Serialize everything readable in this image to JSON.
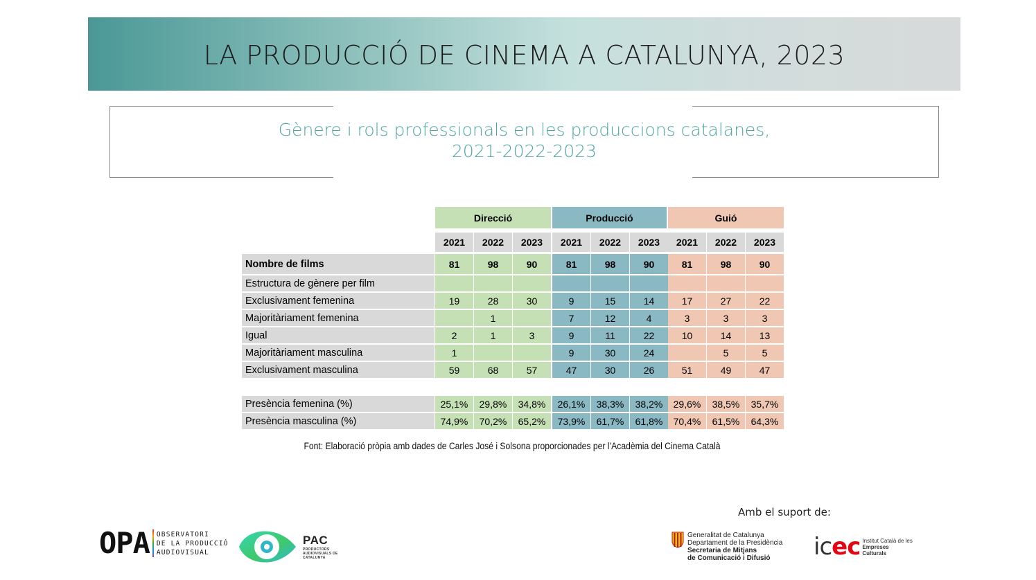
{
  "header": {
    "title": "LA PRODUCCIÓ DE CINEMA A CATALUNYA, 2023"
  },
  "subtitle": {
    "line1": "Gènere i rols professionals en les produccions catalanes,",
    "line2": "2021-2022-2023"
  },
  "table": {
    "groups": [
      "Direcció",
      "Producció",
      "Guió"
    ],
    "years": [
      "2021",
      "2022",
      "2023",
      "2021",
      "2022",
      "2023",
      "2021",
      "2022",
      "2023"
    ],
    "rows": [
      {
        "label": "Nombre de films",
        "values": [
          "81",
          "98",
          "90",
          "81",
          "98",
          "90",
          "81",
          "98",
          "90"
        ]
      },
      {
        "label": "Estructura de gènere per film",
        "values": [
          "",
          "",
          "",
          "",
          "",
          "",
          "",
          "",
          ""
        ]
      },
      {
        "label": "Exclusivament femenina",
        "values": [
          "19",
          "28",
          "30",
          "9",
          "15",
          "14",
          "17",
          "27",
          "22"
        ]
      },
      {
        "label": "Majoritàriament femenina",
        "values": [
          "",
          "1",
          "",
          "7",
          "12",
          "4",
          "3",
          "3",
          "3"
        ]
      },
      {
        "label": "Igual",
        "values": [
          "2",
          "1",
          "3",
          "9",
          "11",
          "22",
          "10",
          "14",
          "13"
        ]
      },
      {
        "label": "Majoritàriament masculina",
        "values": [
          "1",
          "",
          "",
          "9",
          "30",
          "24",
          "",
          "5",
          "5"
        ]
      },
      {
        "label": "Exclusivament masculina",
        "values": [
          "59",
          "68",
          "57",
          "47",
          "30",
          "26",
          "51",
          "49",
          "47"
        ]
      }
    ],
    "presence_rows": [
      {
        "label": "Presència femenina (%)",
        "values": [
          "25,1%",
          "29,8%",
          "34,8%",
          "26,1%",
          "38,3%",
          "38,2%",
          "29,6%",
          "38,5%",
          "35,7%"
        ]
      },
      {
        "label": "Presència masculina (%)",
        "values": [
          "74,9%",
          "70,2%",
          "65,2%",
          "73,9%",
          "61,7%",
          "61,8%",
          "70,4%",
          "61,5%",
          "64,3%"
        ]
      }
    ]
  },
  "source": "Font: Elaboració pròpia amb dades de Carles José i Solsona proporcionades per l’Acadèmia del Cinema Català",
  "footer": {
    "support_label": "Amb el suport de:",
    "opa": {
      "mark": "OPA",
      "lines": [
        "OBSERVATORI",
        "DE LA PRODUCCIÓ",
        "AUDIOVISUAL"
      ]
    },
    "pac": {
      "name": "PAC",
      "sub": "PRODUCTORS AUDIOVISUALS DE CATALUNYA"
    },
    "gencat": {
      "lines": [
        "Generalitat de Catalunya",
        "Departament de la Presidència"
      ],
      "strong_lines": [
        "Secretaria de Mitjans",
        "de Comunicació i Difusió"
      ]
    },
    "icec": {
      "mark_ic": "ic",
      "mark_ec": "ec",
      "lines": [
        "Institut Català de les"
      ],
      "strong_lines": [
        "Empreses",
        "Culturals"
      ]
    }
  },
  "colors": {
    "direccio": "#c5e0b4",
    "produccio": "#8ab9c4",
    "guio": "#efc7b3",
    "label_bg": "#d9d9d9",
    "subtitle": "#4ea6a2"
  }
}
